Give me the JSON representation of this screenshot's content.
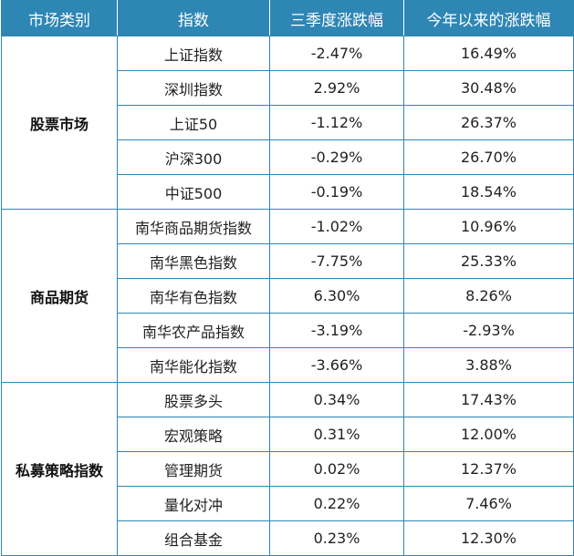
{
  "headers": [
    "市场类别",
    "指数",
    "三季度涨跌幅",
    "今年以来的涨跌幅"
  ],
  "groups": [
    {
      "category": "股票市场",
      "rows": [
        {
          "index": "上证指数",
          "q3": "-2.47%",
          "ytd": "16.49%"
        },
        {
          "index": "深圳指数",
          "q3": "2.92%",
          "ytd": "30.48%"
        },
        {
          "index": "上证50",
          "q3": "-1.12%",
          "ytd": "26.37%"
        },
        {
          "index": "沪深300",
          "q3": "-0.29%",
          "ytd": "26.70%"
        },
        {
          "index": "中证500",
          "q3": "-0.19%",
          "ytd": "18.54%"
        }
      ]
    },
    {
      "category": "商品期货",
      "rows": [
        {
          "index": "南华商品期货指数",
          "q3": "-1.02%",
          "ytd": "10.96%"
        },
        {
          "index": "南华黑色指数",
          "q3": "-7.75%",
          "ytd": "25.33%"
        },
        {
          "index": "南华有色指数",
          "q3": "6.30%",
          "ytd": "8.26%"
        },
        {
          "index": "南华农产品指数",
          "q3": "-3.19%",
          "ytd": "-2.93%"
        },
        {
          "index": "南华能化指数",
          "q3": "-3.66%",
          "ytd": "3.88%"
        }
      ]
    },
    {
      "category": "私募策略指数",
      "rows": [
        {
          "index": "股票多头",
          "q3": "0.34%",
          "ytd": "17.43%"
        },
        {
          "index": "宏观策略",
          "q3": "0.31%",
          "ytd": "12.00%"
        },
        {
          "index": "管理期货",
          "q3": "0.02%",
          "ytd": "12.37%"
        },
        {
          "index": "量化对冲",
          "q3": "0.22%",
          "ytd": "7.46%"
        },
        {
          "index": "组合基金",
          "q3": "0.23%",
          "ytd": "12.30%"
        }
      ]
    }
  ]
}
